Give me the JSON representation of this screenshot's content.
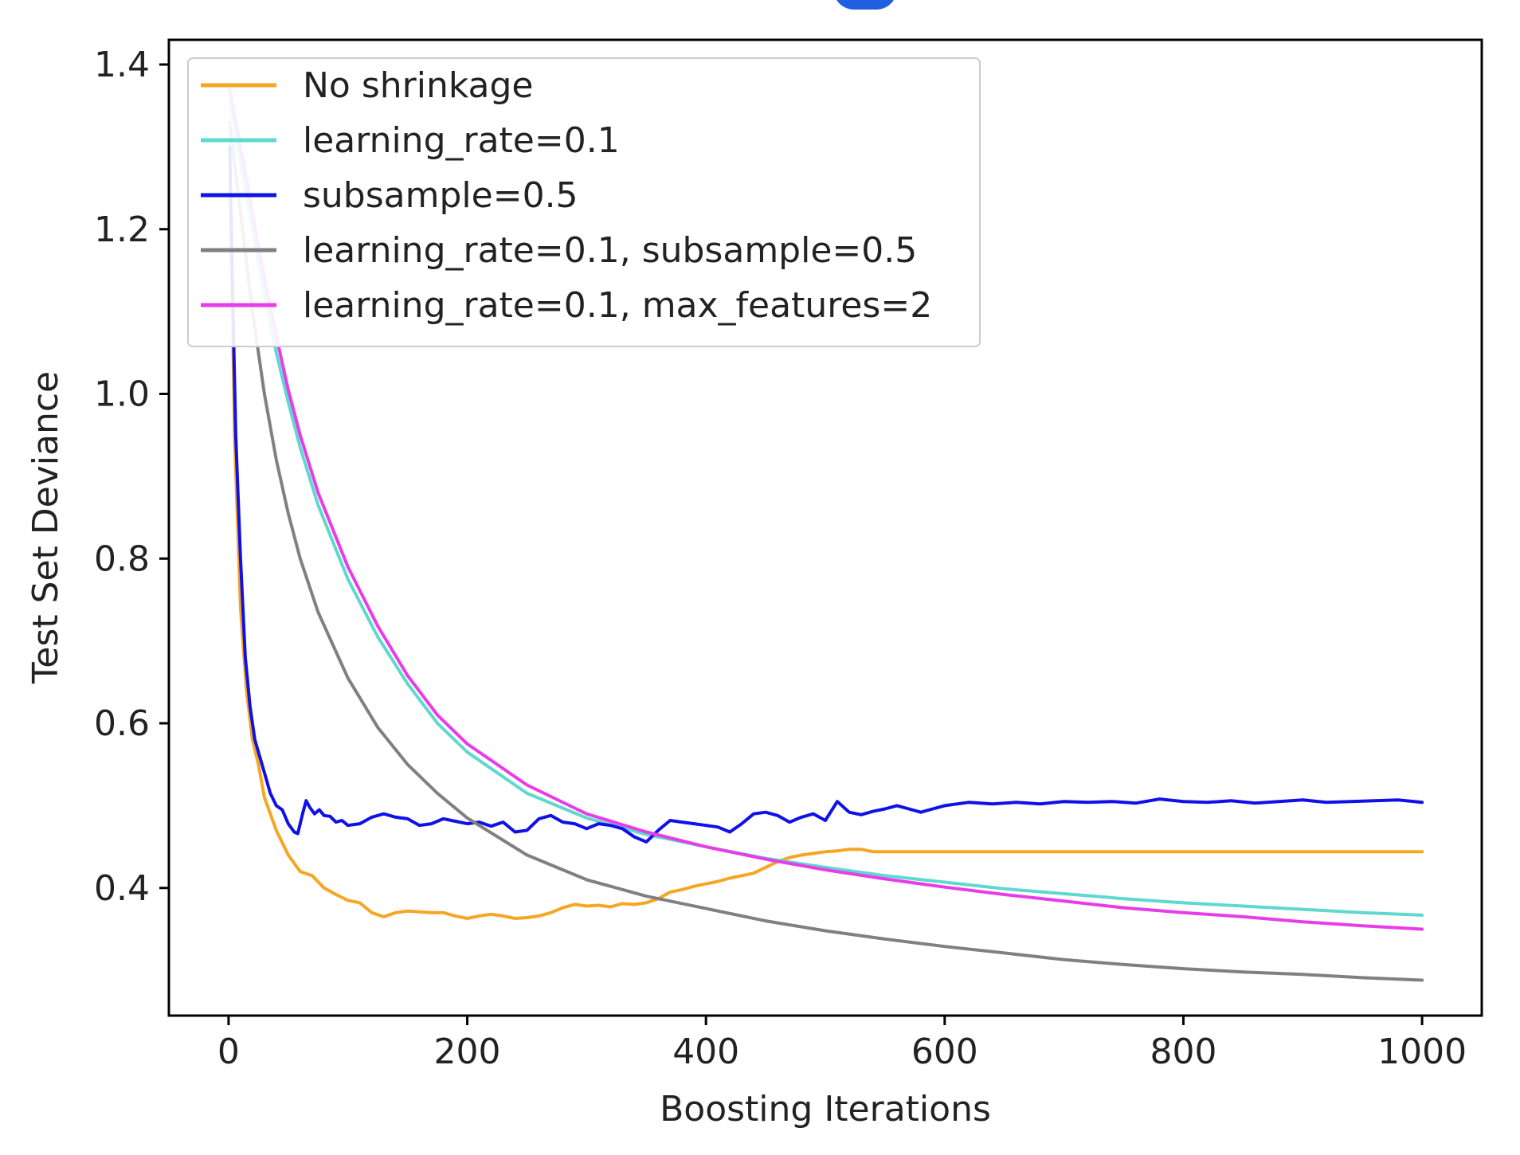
{
  "chart_data": {
    "type": "line",
    "title": "",
    "xlabel": "Boosting Iterations",
    "ylabel": "Test Set Deviance",
    "xlim": [
      -50,
      1050
    ],
    "ylim": [
      0.245,
      1.43
    ],
    "xticks": [
      0,
      200,
      400,
      600,
      800,
      1000
    ],
    "xtick_labels": [
      "0",
      "200",
      "400",
      "600",
      "800",
      "1000"
    ],
    "yticks": [
      0.4,
      0.6,
      0.8,
      1.0,
      1.2,
      1.4
    ],
    "ytick_labels": [
      "0.4",
      "0.6",
      "0.8",
      "1.0",
      "1.2",
      "1.4"
    ],
    "grid": false,
    "legend_position": "top-left",
    "series": [
      {
        "name": "No shrinkage",
        "color": "#f5a623",
        "x": [
          1,
          5,
          10,
          15,
          20,
          25,
          30,
          40,
          50,
          60,
          70,
          80,
          90,
          100,
          110,
          120,
          130,
          140,
          150,
          160,
          170,
          180,
          190,
          200,
          210,
          220,
          230,
          240,
          250,
          260,
          270,
          280,
          290,
          300,
          310,
          320,
          330,
          340,
          350,
          360,
          370,
          380,
          390,
          400,
          410,
          420,
          430,
          440,
          450,
          460,
          470,
          480,
          490,
          500,
          510,
          520,
          530,
          540,
          600,
          700,
          800,
          900,
          1000
        ],
        "y": [
          1.3,
          0.95,
          0.74,
          0.64,
          0.58,
          0.55,
          0.51,
          0.47,
          0.44,
          0.42,
          0.415,
          0.4,
          0.392,
          0.385,
          0.382,
          0.37,
          0.365,
          0.37,
          0.372,
          0.371,
          0.37,
          0.37,
          0.366,
          0.363,
          0.366,
          0.368,
          0.366,
          0.363,
          0.364,
          0.366,
          0.37,
          0.376,
          0.38,
          0.378,
          0.379,
          0.377,
          0.381,
          0.38,
          0.382,
          0.387,
          0.395,
          0.398,
          0.402,
          0.405,
          0.408,
          0.412,
          0.415,
          0.418,
          0.425,
          0.432,
          0.437,
          0.44,
          0.442,
          0.444,
          0.445,
          0.447,
          0.447,
          0.444,
          0.444,
          0.444,
          0.444,
          0.444,
          0.444
        ]
      },
      {
        "name": "learning_rate=0.1",
        "color": "#5fd8d0",
        "x": [
          1,
          10,
          20,
          30,
          40,
          50,
          60,
          75,
          100,
          125,
          150,
          175,
          200,
          250,
          300,
          350,
          400,
          450,
          500,
          550,
          600,
          650,
          700,
          750,
          800,
          850,
          900,
          950,
          1000
        ],
        "y": [
          1.36,
          1.28,
          1.2,
          1.12,
          1.05,
          0.99,
          0.935,
          0.865,
          0.775,
          0.705,
          0.648,
          0.6,
          0.565,
          0.515,
          0.485,
          0.465,
          0.45,
          0.436,
          0.425,
          0.415,
          0.407,
          0.399,
          0.393,
          0.387,
          0.382,
          0.378,
          0.374,
          0.37,
          0.367
        ]
      },
      {
        "name": "subsample=0.5",
        "color": "#1010e8",
        "x": [
          1,
          3,
          6,
          10,
          14,
          18,
          22,
          26,
          30,
          35,
          40,
          45,
          50,
          55,
          58,
          62,
          65,
          68,
          72,
          76,
          80,
          85,
          90,
          95,
          100,
          110,
          120,
          130,
          140,
          150,
          160,
          170,
          180,
          190,
          200,
          210,
          220,
          230,
          240,
          250,
          260,
          270,
          280,
          290,
          300,
          310,
          320,
          330,
          340,
          350,
          360,
          370,
          380,
          390,
          400,
          410,
          420,
          430,
          440,
          450,
          460,
          470,
          480,
          490,
          500,
          510,
          520,
          530,
          540,
          550,
          560,
          570,
          580,
          590,
          600,
          620,
          640,
          660,
          680,
          700,
          720,
          740,
          760,
          780,
          800,
          820,
          840,
          860,
          880,
          900,
          920,
          940,
          960,
          980,
          1000
        ],
        "y": [
          1.3,
          1.15,
          0.95,
          0.8,
          0.68,
          0.62,
          0.58,
          0.56,
          0.54,
          0.515,
          0.5,
          0.495,
          0.478,
          0.468,
          0.466,
          0.49,
          0.506,
          0.498,
          0.49,
          0.495,
          0.488,
          0.487,
          0.48,
          0.482,
          0.476,
          0.478,
          0.486,
          0.49,
          0.486,
          0.484,
          0.476,
          0.478,
          0.484,
          0.481,
          0.478,
          0.48,
          0.475,
          0.48,
          0.468,
          0.47,
          0.484,
          0.488,
          0.48,
          0.478,
          0.472,
          0.478,
          0.476,
          0.472,
          0.462,
          0.456,
          0.47,
          0.482,
          0.48,
          0.478,
          0.476,
          0.474,
          0.468,
          0.478,
          0.49,
          0.492,
          0.488,
          0.48,
          0.486,
          0.49,
          0.482,
          0.505,
          0.492,
          0.489,
          0.493,
          0.496,
          0.5,
          0.496,
          0.492,
          0.496,
          0.5,
          0.504,
          0.502,
          0.504,
          0.502,
          0.505,
          0.504,
          0.505,
          0.503,
          0.508,
          0.505,
          0.504,
          0.506,
          0.503,
          0.505,
          0.507,
          0.504,
          0.505,
          0.506,
          0.507,
          0.504
        ]
      },
      {
        "name": "learning_rate=0.1, subsample=0.5",
        "color": "#808080",
        "x": [
          1,
          10,
          20,
          30,
          40,
          50,
          60,
          75,
          100,
          125,
          150,
          175,
          200,
          250,
          300,
          350,
          400,
          450,
          500,
          550,
          600,
          650,
          700,
          750,
          800,
          850,
          900,
          950,
          1000
        ],
        "y": [
          1.33,
          1.22,
          1.1,
          1.0,
          0.92,
          0.855,
          0.8,
          0.735,
          0.655,
          0.595,
          0.55,
          0.515,
          0.485,
          0.44,
          0.41,
          0.39,
          0.375,
          0.36,
          0.348,
          0.338,
          0.329,
          0.321,
          0.313,
          0.307,
          0.302,
          0.298,
          0.295,
          0.291,
          0.288
        ]
      },
      {
        "name": "learning_rate=0.1, max_features=2",
        "color": "#e83ce8",
        "x": [
          1,
          10,
          20,
          30,
          40,
          50,
          60,
          75,
          100,
          125,
          150,
          175,
          200,
          250,
          300,
          350,
          400,
          450,
          500,
          550,
          600,
          650,
          700,
          750,
          800,
          850,
          900,
          950,
          1000
        ],
        "y": [
          1.37,
          1.3,
          1.22,
          1.14,
          1.07,
          1.005,
          0.95,
          0.88,
          0.79,
          0.718,
          0.658,
          0.61,
          0.575,
          0.525,
          0.49,
          0.468,
          0.45,
          0.435,
          0.422,
          0.411,
          0.401,
          0.392,
          0.384,
          0.376,
          0.37,
          0.365,
          0.359,
          0.354,
          0.35
        ]
      }
    ]
  }
}
